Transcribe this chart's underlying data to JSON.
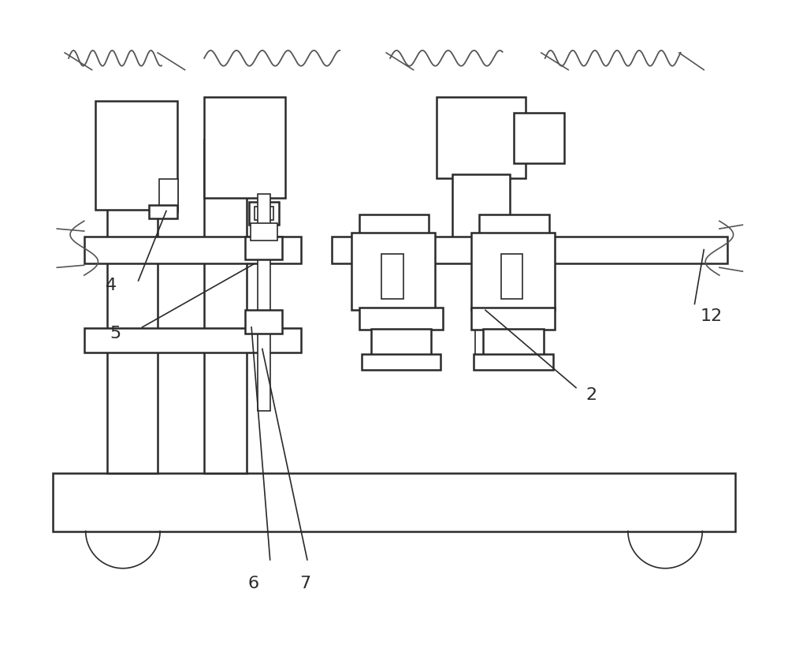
{
  "bg_color": "#ffffff",
  "line_color": "#2a2a2a",
  "lw_main": 1.8,
  "lw_thin": 1.2,
  "fig_width": 10.0,
  "fig_height": 8.23
}
